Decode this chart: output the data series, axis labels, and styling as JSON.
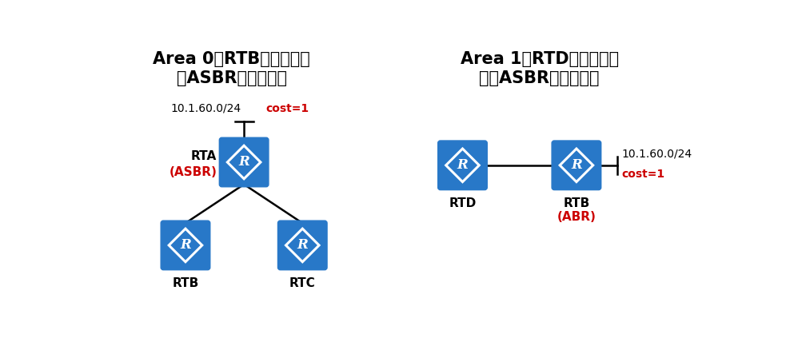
{
  "bg_color": "#ffffff",
  "router_color": "#2878c8",
  "line_color": "#000000",
  "text_color_black": "#000000",
  "text_color_red": "#cc0000",
  "left_title_line1": "Area 0中RTB的计算结果",
  "left_title_line2": "（ASBR所在区域）",
  "right_title_line1": "Area 1中RTD的计算结果",
  "right_title_line2": "（非ASBR所在区域）",
  "left_network": "10.1.60.0/24",
  "left_cost": "cost=1",
  "right_network": "10.1.60.0/24",
  "right_cost": "cost=1",
  "rta_label1": "RTA",
  "rta_label2": "(ASBR)",
  "rtb_label": "RTB",
  "rtc_label": "RTC",
  "rtd_label": "RTD",
  "rtb2_label1": "RTB",
  "rtb2_label2": "(ABR)",
  "font_size_title": 15,
  "font_size_label": 11,
  "font_size_network": 10,
  "font_size_r": 12
}
